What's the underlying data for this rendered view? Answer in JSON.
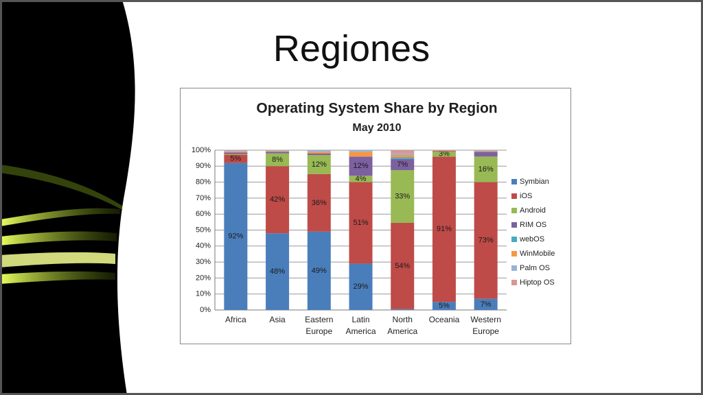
{
  "slide": {
    "title": "Regiones"
  },
  "chart_data": {
    "type": "stacked_bar",
    "title": "Operating System Share by Region",
    "subtitle": "May 2010",
    "categories": [
      "Africa",
      "Asia",
      "Eastern Europe",
      "Latin America",
      "North America",
      "Oceania",
      "Western Europe"
    ],
    "ylim": [
      0,
      100
    ],
    "yticks": [
      {
        "value": 0,
        "label": "0%"
      },
      {
        "value": 10,
        "label": "10%"
      },
      {
        "value": 20,
        "label": "20%"
      },
      {
        "value": 30,
        "label": "30%"
      },
      {
        "value": 40,
        "label": "40%"
      },
      {
        "value": 50,
        "label": "50%"
      },
      {
        "value": 60,
        "label": "60%"
      },
      {
        "value": 70,
        "label": "70%"
      },
      {
        "value": 80,
        "label": "80%"
      },
      {
        "value": 90,
        "label": "90%"
      },
      {
        "value": 100,
        "label": "100%"
      }
    ],
    "grid": true,
    "legend": "right",
    "series": [
      {
        "name": "Symbian",
        "color": "#4a7ebb",
        "values": [
          92,
          48,
          49,
          29,
          0.5,
          5,
          7
        ],
        "value_labels": [
          "92%",
          "48%",
          "49%",
          "29%",
          null,
          "5%",
          "7%"
        ]
      },
      {
        "name": "iOS",
        "color": "#be4b48",
        "values": [
          5,
          42,
          36,
          51,
          54,
          91,
          73
        ],
        "value_labels": [
          "5%",
          "42%",
          "36%",
          "51%",
          "54%",
          "91%",
          "73%"
        ]
      },
      {
        "name": "Android",
        "color": "#98b954",
        "values": [
          0.5,
          8,
          12,
          4,
          33,
          3,
          16
        ],
        "value_labels": [
          null,
          "8%",
          "12%",
          "4%",
          "33%",
          "3%",
          "16%"
        ]
      },
      {
        "name": "RIM OS",
        "color": "#7d60a0",
        "values": [
          1,
          1,
          1,
          12,
          7,
          0.5,
          3
        ],
        "value_labels": [
          null,
          null,
          null,
          "12%",
          "7%",
          null,
          null
        ]
      },
      {
        "name": "webOS",
        "color": "#46aac5",
        "values": [
          0,
          0,
          0,
          0,
          1,
          0,
          0
        ]
      },
      {
        "name": "WinMobile",
        "color": "#f79646",
        "values": [
          0.5,
          0.5,
          1,
          3,
          1.5,
          0.5,
          0.5
        ]
      },
      {
        "name": "Palm OS",
        "color": "#95b3d7",
        "values": [
          0.5,
          0.5,
          1,
          1,
          1,
          0,
          0.5
        ]
      },
      {
        "name": "Hiptop OS",
        "color": "#d99694",
        "values": [
          0.5,
          0,
          0,
          0,
          2,
          0,
          0
        ]
      }
    ]
  }
}
